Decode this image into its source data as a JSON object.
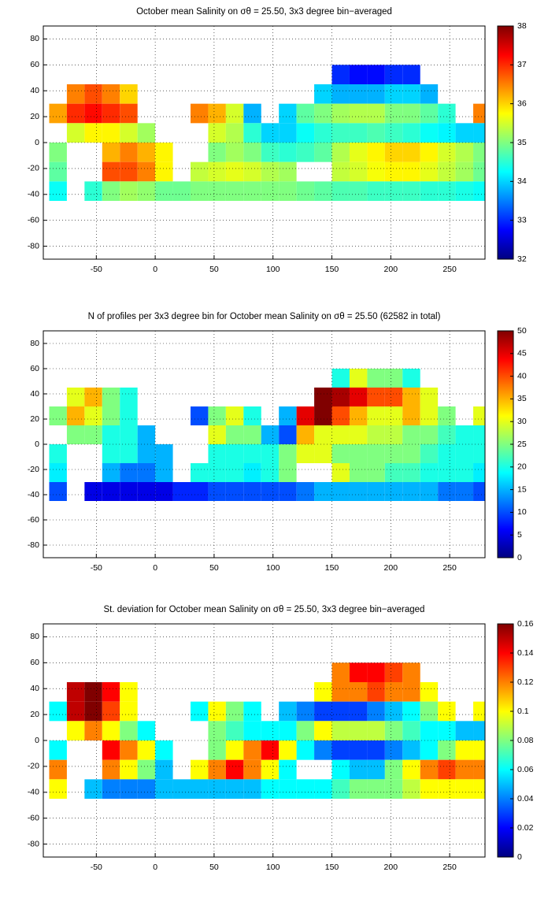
{
  "chart_data": [
    {
      "type": "heatmap",
      "title": "October mean Salinity on σθ = 25.50, 3x3 degree bin−averaged",
      "colormap": "jet",
      "grid": true,
      "x": [
        -82.5,
        -67.5,
        -52.5,
        -37.5,
        -22.5,
        -7.5,
        7.5,
        22.5,
        37.5,
        52.5,
        67.5,
        82.5,
        97.5,
        112.5,
        127.5,
        142.5,
        157.5,
        172.5,
        187.5,
        202.5,
        217.5,
        232.5,
        247.5,
        262.5,
        277.5
      ],
      "y": [
        52.5,
        37.5,
        22.5,
        7.5,
        -7.5,
        -22.5,
        -37.5
      ],
      "z": [
        [
          null,
          null,
          null,
          null,
          null,
          null,
          null,
          null,
          null,
          null,
          null,
          null,
          null,
          null,
          null,
          null,
          33,
          32.8,
          32.8,
          33,
          33,
          null,
          null,
          null,
          null
        ],
        [
          null,
          36.5,
          36.8,
          36.5,
          36,
          null,
          null,
          null,
          null,
          null,
          null,
          null,
          null,
          null,
          null,
          34,
          33.8,
          33.8,
          33.8,
          34,
          34,
          33.8,
          null,
          null,
          null
        ],
        [
          36.3,
          37,
          37.2,
          37,
          36.8,
          null,
          null,
          null,
          36.5,
          36.2,
          35.5,
          33.8,
          null,
          34,
          34.8,
          35,
          35.2,
          35.3,
          35.3,
          35,
          35,
          34.8,
          34.5,
          null,
          36.5
        ],
        [
          null,
          35.5,
          35.8,
          35.8,
          35.5,
          35.2,
          null,
          null,
          null,
          35.5,
          35.3,
          34.5,
          34,
          34,
          34.3,
          34.5,
          34.6,
          34.6,
          34.7,
          34.6,
          34.5,
          34.3,
          34.2,
          34,
          34
        ],
        [
          35,
          null,
          null,
          36.2,
          36.5,
          36.2,
          35.8,
          null,
          null,
          35,
          35.2,
          35,
          34.6,
          34.5,
          34.6,
          34.8,
          35.3,
          35.6,
          35.8,
          36,
          36,
          35.8,
          35.5,
          35.3,
          35
        ],
        [
          34.8,
          null,
          null,
          36.8,
          36.8,
          36.5,
          35.8,
          null,
          35.4,
          35.5,
          35.6,
          35.5,
          35.3,
          35.2,
          null,
          null,
          35.4,
          35.5,
          35.7,
          35.8,
          35.8,
          35.6,
          35.4,
          35.2,
          34.9
        ],
        [
          34.3,
          null,
          34.5,
          35,
          35.2,
          35.1,
          34.9,
          34.9,
          35,
          35,
          35,
          35,
          35,
          35,
          34.9,
          34.8,
          34.7,
          34.7,
          34.6,
          34.6,
          34.6,
          34.5,
          34.5,
          34.4,
          34.3
        ]
      ],
      "xlim": [
        -95,
        280
      ],
      "ylim": [
        -90,
        90
      ],
      "xticks": [
        -50,
        0,
        50,
        100,
        150,
        200,
        250
      ],
      "yticks": [
        -80,
        -60,
        -40,
        -20,
        0,
        20,
        40,
        60,
        80
      ],
      "clim": [
        32,
        38
      ],
      "cticks": [
        32,
        33,
        34,
        35,
        36,
        37,
        38
      ]
    },
    {
      "type": "heatmap",
      "title": "N of profiles per 3x3 degree bin for October mean Salinity on σθ = 25.50 (62582 in total)",
      "colormap": "jet",
      "grid": true,
      "x": [
        -82.5,
        -67.5,
        -52.5,
        -37.5,
        -22.5,
        -7.5,
        7.5,
        22.5,
        37.5,
        52.5,
        67.5,
        82.5,
        97.5,
        112.5,
        127.5,
        142.5,
        157.5,
        172.5,
        187.5,
        202.5,
        217.5,
        232.5,
        247.5,
        262.5,
        277.5
      ],
      "y": [
        52.5,
        37.5,
        22.5,
        7.5,
        -7.5,
        -22.5,
        -37.5
      ],
      "z": [
        [
          null,
          null,
          null,
          null,
          null,
          null,
          null,
          null,
          null,
          null,
          null,
          null,
          null,
          null,
          null,
          null,
          20,
          30,
          25,
          25,
          20,
          null,
          null,
          null,
          null
        ],
        [
          null,
          30,
          35,
          25,
          20,
          null,
          null,
          null,
          null,
          null,
          null,
          null,
          null,
          null,
          null,
          50,
          48,
          45,
          40,
          40,
          35,
          30,
          null,
          null,
          null
        ],
        [
          25,
          35,
          30,
          25,
          20,
          null,
          null,
          null,
          10,
          25,
          30,
          20,
          null,
          15,
          45,
          50,
          40,
          35,
          30,
          30,
          35,
          30,
          25,
          null,
          30
        ],
        [
          null,
          25,
          25,
          20,
          20,
          15,
          null,
          null,
          null,
          30,
          25,
          25,
          15,
          10,
          35,
          30,
          30,
          30,
          28,
          28,
          25,
          25,
          22,
          20,
          20
        ],
        [
          20,
          null,
          null,
          20,
          20,
          15,
          15,
          null,
          null,
          20,
          20,
          20,
          20,
          25,
          30,
          30,
          25,
          25,
          25,
          25,
          25,
          22,
          20,
          20,
          20
        ],
        [
          18,
          null,
          null,
          15,
          12,
          12,
          15,
          null,
          20,
          20,
          20,
          18,
          20,
          25,
          null,
          null,
          30,
          25,
          25,
          22,
          22,
          20,
          20,
          20,
          18
        ],
        [
          10,
          null,
          5,
          5,
          5,
          5,
          5,
          8,
          8,
          10,
          10,
          10,
          10,
          10,
          12,
          15,
          15,
          15,
          15,
          15,
          15,
          15,
          12,
          12,
          10
        ]
      ],
      "xlim": [
        -95,
        280
      ],
      "ylim": [
        -90,
        90
      ],
      "xticks": [
        -50,
        0,
        50,
        100,
        150,
        200,
        250
      ],
      "yticks": [
        -80,
        -60,
        -40,
        -20,
        0,
        20,
        40,
        60,
        80
      ],
      "clim": [
        0,
        50
      ],
      "cticks": [
        0,
        5,
        10,
        15,
        20,
        25,
        30,
        35,
        40,
        45,
        50
      ]
    },
    {
      "type": "heatmap",
      "title": "St. deviation for October mean Salinity on σθ = 25.50, 3x3 degree bin−averaged",
      "colormap": "jet",
      "grid": true,
      "x": [
        -82.5,
        -67.5,
        -52.5,
        -37.5,
        -22.5,
        -7.5,
        7.5,
        22.5,
        37.5,
        52.5,
        67.5,
        82.5,
        97.5,
        112.5,
        127.5,
        142.5,
        157.5,
        172.5,
        187.5,
        202.5,
        217.5,
        232.5,
        247.5,
        262.5,
        277.5
      ],
      "y": [
        52.5,
        37.5,
        22.5,
        7.5,
        -7.5,
        -22.5,
        -37.5
      ],
      "z": [
        [
          null,
          null,
          null,
          null,
          null,
          null,
          null,
          null,
          null,
          null,
          null,
          null,
          null,
          null,
          null,
          null,
          0.12,
          0.14,
          0.14,
          0.13,
          0.12,
          null,
          null,
          null,
          null
        ],
        [
          null,
          0.15,
          0.16,
          0.14,
          0.1,
          null,
          null,
          null,
          null,
          null,
          null,
          null,
          null,
          null,
          null,
          0.1,
          0.12,
          0.12,
          0.13,
          0.12,
          0.12,
          0.1,
          null,
          null,
          null
        ],
        [
          0.06,
          0.15,
          0.16,
          0.13,
          0.1,
          null,
          null,
          null,
          0.06,
          0.1,
          0.08,
          0.06,
          null,
          0.05,
          0.04,
          0.03,
          0.03,
          0.03,
          0.04,
          0.05,
          0.06,
          0.08,
          0.1,
          null,
          0.1
        ],
        [
          null,
          0.1,
          0.12,
          0.1,
          0.08,
          0.06,
          null,
          null,
          null,
          0.08,
          0.07,
          0.06,
          0.06,
          0.06,
          0.08,
          0.1,
          0.09,
          0.09,
          0.09,
          0.08,
          0.07,
          0.06,
          0.06,
          0.05,
          0.05
        ],
        [
          0.06,
          null,
          null,
          0.14,
          0.12,
          0.1,
          0.06,
          null,
          null,
          0.08,
          0.1,
          0.12,
          0.14,
          0.1,
          0.06,
          0.04,
          0.03,
          0.03,
          0.03,
          0.04,
          0.05,
          0.06,
          0.08,
          0.1,
          0.1
        ],
        [
          0.12,
          null,
          null,
          0.12,
          0.1,
          0.08,
          0.05,
          null,
          0.1,
          0.12,
          0.14,
          0.12,
          0.1,
          0.06,
          null,
          null,
          0.06,
          0.05,
          0.05,
          0.08,
          0.1,
          0.12,
          0.13,
          0.12,
          0.12
        ],
        [
          0.1,
          null,
          0.05,
          0.04,
          0.04,
          0.04,
          0.05,
          0.05,
          0.05,
          0.05,
          0.05,
          0.05,
          0.06,
          0.06,
          0.06,
          0.06,
          0.07,
          0.08,
          0.08,
          0.08,
          0.09,
          0.1,
          0.1,
          0.1,
          0.1
        ]
      ],
      "xlim": [
        -95,
        280
      ],
      "ylim": [
        -90,
        90
      ],
      "xticks": [
        -50,
        0,
        50,
        100,
        150,
        200,
        250
      ],
      "yticks": [
        -80,
        -60,
        -40,
        -20,
        0,
        20,
        40,
        60,
        80
      ],
      "clim": [
        0,
        0.16
      ],
      "cticks": [
        0,
        0.02,
        0.04,
        0.06,
        0.08,
        0.1,
        0.12,
        0.14,
        0.16
      ]
    }
  ]
}
